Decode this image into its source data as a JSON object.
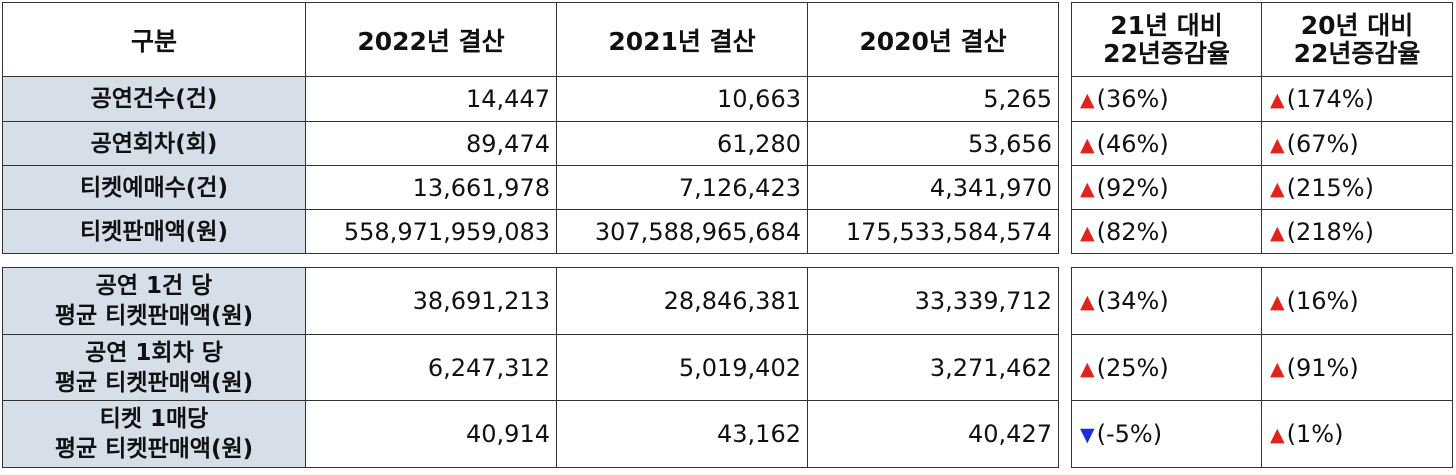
{
  "columns": {
    "category": "구분",
    "y2022": "2022년  결산",
    "y2021": "2021년  결산",
    "y2020": "2020년  결산",
    "chg21_line1": "21년  대비",
    "chg21_line2": "22년증감율",
    "chg20_line1": "20년  대비",
    "chg20_line2": "22년증감율"
  },
  "rows": [
    {
      "label": "공연건수(건)",
      "y2022": "14,447",
      "y2021": "10,663",
      "y2020": "5,265",
      "chg21": "(36%)",
      "chg21_dir": "up",
      "chg20": "(174%)",
      "chg20_dir": "up"
    },
    {
      "label": "공연회차(회)",
      "y2022": "89,474",
      "y2021": "61,280",
      "y2020": "53,656",
      "chg21": "(46%)",
      "chg21_dir": "up",
      "chg20": "(67%)",
      "chg20_dir": "up"
    },
    {
      "label": "티켓예매수(건)",
      "y2022": "13,661,978",
      "y2021": "7,126,423",
      "y2020": "4,341,970",
      "chg21": "(92%)",
      "chg21_dir": "up",
      "chg20": "(215%)",
      "chg20_dir": "up"
    },
    {
      "label": "티켓판매액(원)",
      "y2022": "558,971,959,083",
      "y2021": "307,588,965,684",
      "y2020": "175,533,584,574",
      "chg21": "(82%)",
      "chg21_dir": "up",
      "chg20": "(218%)",
      "chg20_dir": "up"
    }
  ],
  "avg_rows": [
    {
      "label_line1": "공연  1건  당",
      "label_line2": "평균  티켓판매액(원)",
      "y2022": "38,691,213",
      "y2021": "28,846,381",
      "y2020": "33,339,712",
      "chg21": "(34%)",
      "chg21_dir": "up",
      "chg20": "(16%)",
      "chg20_dir": "up"
    },
    {
      "label_line1": "공연  1회차  당",
      "label_line2": "평균  티켓판매액(원)",
      "y2022": "6,247,312",
      "y2021": "5,019,402",
      "y2020": "3,271,462",
      "chg21": "(25%)",
      "chg21_dir": "up",
      "chg20": "(91%)",
      "chg20_dir": "up"
    },
    {
      "label_line1": "티켓  1매당",
      "label_line2": "평균  티켓판매액(원)",
      "y2022": "40,914",
      "y2021": "43,162",
      "y2020": "40,427",
      "chg21": "(-5%)",
      "chg21_dir": "down",
      "chg20": "(1%)",
      "chg20_dir": "up"
    }
  ],
  "symbols": {
    "up": "▲",
    "down": "▼"
  },
  "colors": {
    "row_header_bg": "#d6dfe9",
    "up": "#e3231a",
    "down": "#1f2fd8"
  }
}
